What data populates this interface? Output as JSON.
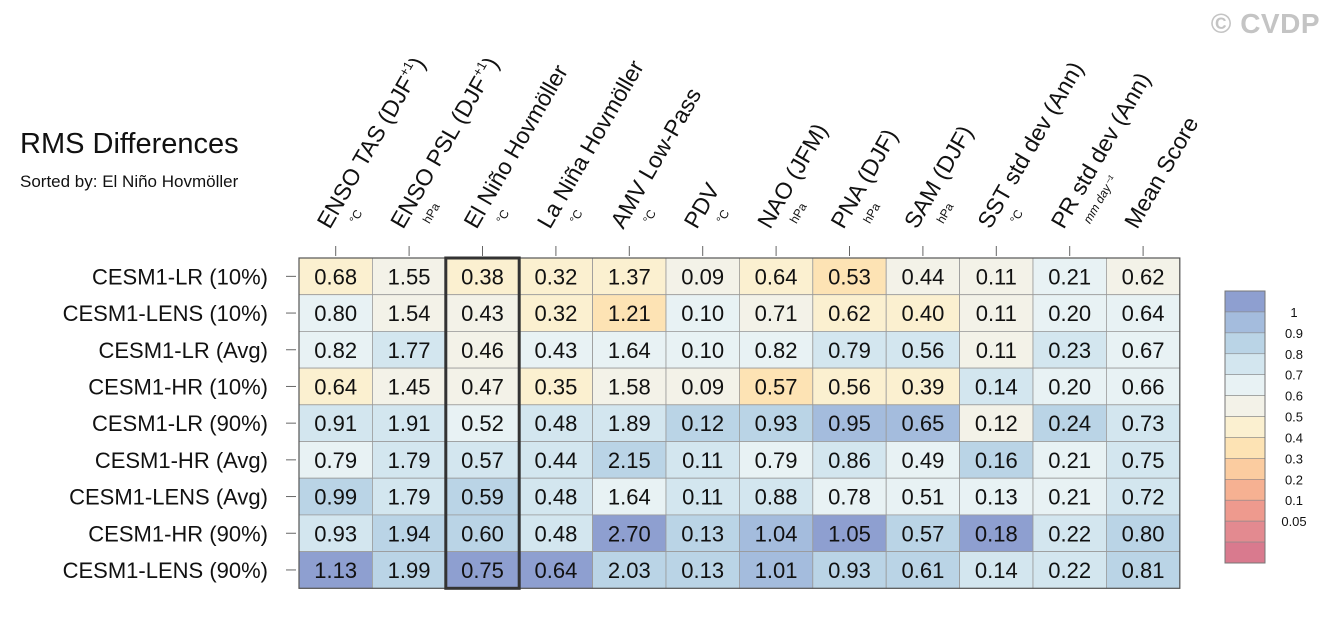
{
  "watermark": "© CVDP",
  "chart_data": {
    "type": "heatmap",
    "title": "RMS Differences",
    "subtitle": "Sorted by: El Niño Hovmöller",
    "columns": [
      {
        "label": "ENSO TAS (DJF",
        "sup": "+1",
        "close": ")",
        "unit": "°C"
      },
      {
        "label": "ENSO PSL (DJF",
        "sup": "+1",
        "close": ")",
        "unit": "hPa"
      },
      {
        "label": "El Niño Hovmöller",
        "sup": "",
        "close": "",
        "unit": "°C"
      },
      {
        "label": "La Niña Hovmöller",
        "sup": "",
        "close": "",
        "unit": "°C"
      },
      {
        "label": "AMV Low-Pass",
        "sup": "",
        "close": "",
        "unit": "°C"
      },
      {
        "label": "PDV",
        "sup": "",
        "close": "",
        "unit": "°C"
      },
      {
        "label": "NAO (JFM)",
        "sup": "",
        "close": "",
        "unit": "hPa"
      },
      {
        "label": "PNA (DJF)",
        "sup": "",
        "close": "",
        "unit": "hPa"
      },
      {
        "label": "SAM (DJF)",
        "sup": "",
        "close": "",
        "unit": "hPa"
      },
      {
        "label": "SST std dev (Ann)",
        "sup": "",
        "close": "",
        "unit": "°C"
      },
      {
        "label": "PR std dev (Ann)",
        "sup": "",
        "close": "",
        "unit": "mm day⁻¹"
      },
      {
        "label": "Mean Score",
        "sup": "",
        "close": "",
        "unit": ""
      }
    ],
    "rows": [
      "CESM1-LR (10%)",
      "CESM1-LENS (10%)",
      "CESM1-LR (Avg)",
      "CESM1-HR (10%)",
      "CESM1-LR (90%)",
      "CESM1-HR (Avg)",
      "CESM1-LENS (Avg)",
      "CESM1-HR (90%)",
      "CESM1-LENS (90%)"
    ],
    "values": [
      [
        "0.68",
        "1.55",
        "0.38",
        "0.32",
        "1.37",
        "0.09",
        "0.64",
        "0.53",
        "0.44",
        "0.11",
        "0.21",
        "0.62"
      ],
      [
        "0.80",
        "1.54",
        "0.43",
        "0.32",
        "1.21",
        "0.10",
        "0.71",
        "0.62",
        "0.40",
        "0.11",
        "0.20",
        "0.64"
      ],
      [
        "0.82",
        "1.77",
        "0.46",
        "0.43",
        "1.64",
        "0.10",
        "0.82",
        "0.79",
        "0.56",
        "0.11",
        "0.23",
        "0.67"
      ],
      [
        "0.64",
        "1.45",
        "0.47",
        "0.35",
        "1.58",
        "0.09",
        "0.57",
        "0.56",
        "0.39",
        "0.14",
        "0.20",
        "0.66"
      ],
      [
        "0.91",
        "1.91",
        "0.52",
        "0.48",
        "1.89",
        "0.12",
        "0.93",
        "0.95",
        "0.65",
        "0.12",
        "0.24",
        "0.73"
      ],
      [
        "0.79",
        "1.79",
        "0.57",
        "0.44",
        "2.15",
        "0.11",
        "0.79",
        "0.86",
        "0.49",
        "0.16",
        "0.21",
        "0.75"
      ],
      [
        "0.99",
        "1.79",
        "0.59",
        "0.48",
        "1.64",
        "0.11",
        "0.88",
        "0.78",
        "0.51",
        "0.13",
        "0.21",
        "0.72"
      ],
      [
        "0.93",
        "1.94",
        "0.60",
        "0.48",
        "2.70",
        "0.13",
        "1.04",
        "1.05",
        "0.57",
        "0.18",
        "0.22",
        "0.80"
      ],
      [
        "1.13",
        "1.99",
        "0.75",
        "0.64",
        "2.03",
        "0.13",
        "1.01",
        "0.93",
        "0.61",
        "0.14",
        "0.22",
        "0.81"
      ]
    ],
    "highlighted_column": "El Niño Hovmöller",
    "colorbar": {
      "labels": [
        "1",
        "0.9",
        "0.8",
        "0.7",
        "0.6",
        "0.5",
        "0.4",
        "0.3",
        "0.2",
        "0.1",
        "0.05"
      ],
      "colors": [
        "#8e9fd0",
        "#a4bcdd",
        "#bad4e6",
        "#d3e6ef",
        "#e8f2f4",
        "#f3f2e8",
        "#fbf0d0",
        "#fde3b4",
        "#fbcca0",
        "#f6b192",
        "#ee9a8e",
        "#e38a90",
        "#d97a8e"
      ]
    }
  }
}
